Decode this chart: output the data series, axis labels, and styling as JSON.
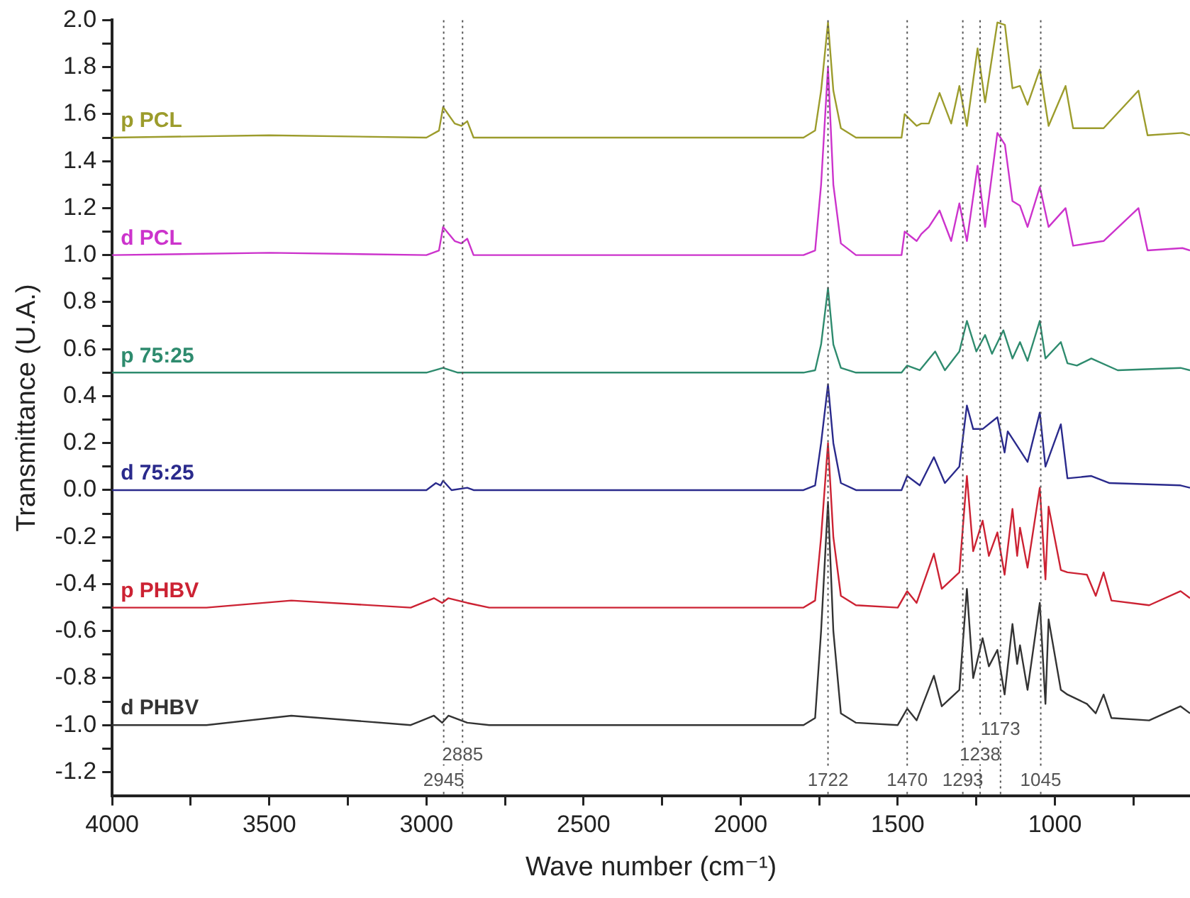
{
  "chart_data": {
    "type": "line",
    "xlabel": "Wave number (cm⁻¹)",
    "ylabel": "Transmittance (U.A.)",
    "xlim": [
      4000,
      570
    ],
    "xticks": [
      4000,
      {
        "value": 3750,
        "label": null
      },
      3500,
      {
        "value": 3250,
        "label": null
      },
      3000,
      {
        "value": 2750,
        "label": null
      },
      2500,
      {
        "value": 2250,
        "label": null
      },
      2000,
      {
        "value": 1750,
        "label": null
      },
      1500,
      {
        "value": 1250,
        "label": null
      },
      1000,
      {
        "value": 750,
        "label": null
      }
    ],
    "ylim": [
      -1.3,
      2.0
    ],
    "yticks": [
      -1.2,
      {
        "value": -1.1,
        "label": null
      },
      {
        "value": -1.0,
        "label": "-1.0"
      },
      {
        "value": -0.9,
        "label": null
      },
      -0.8,
      {
        "value": -0.7,
        "label": null
      },
      -0.6,
      {
        "value": -0.5,
        "label": null
      },
      -0.4,
      {
        "value": -0.3,
        "label": null
      },
      -0.2,
      {
        "value": -0.1,
        "label": null
      },
      {
        "value": 0,
        "label": "0.0"
      },
      {
        "value": 0.1,
        "label": null
      },
      0.2,
      {
        "value": 0.3,
        "label": null
      },
      0.4,
      {
        "value": 0.5,
        "label": null
      },
      0.6,
      {
        "value": 0.7,
        "label": null
      },
      0.8,
      {
        "value": 0.9,
        "label": null
      },
      {
        "value": 1.0,
        "label": "1.0"
      },
      {
        "value": 1.1,
        "label": null
      },
      1.2,
      {
        "value": 1.3,
        "label": null
      },
      1.4,
      {
        "value": 1.5,
        "label": null
      },
      1.6,
      {
        "value": 1.7,
        "label": null
      },
      1.8,
      {
        "value": 1.9,
        "label": null
      },
      {
        "value": 2.0,
        "label": "2.0"
      }
    ],
    "grid": false,
    "legend": false,
    "marker": "none",
    "line_style": "solid",
    "series": [
      {
        "name": "p PCL",
        "color": "#9c9c2c",
        "x": [
          4000,
          3500,
          3000,
          2960,
          2947,
          2910,
          2889,
          2870,
          2850,
          1800,
          1763,
          1744,
          1722,
          1705,
          1681,
          1633,
          1488,
          1478,
          1440,
          1425,
          1401,
          1367,
          1330,
          1304,
          1280,
          1246,
          1222,
          1183,
          1159,
          1135,
          1111,
          1087,
          1048,
          1020,
          966,
          942,
          845,
          734,
          705,
          594,
          570
        ],
        "values": [
          1.5,
          1.51,
          1.5,
          1.53,
          1.63,
          1.56,
          1.55,
          1.57,
          1.5,
          1.5,
          1.53,
          1.7,
          1.99,
          1.7,
          1.54,
          1.5,
          1.5,
          1.6,
          1.55,
          1.56,
          1.56,
          1.69,
          1.56,
          1.72,
          1.55,
          1.88,
          1.65,
          1.99,
          1.98,
          1.71,
          1.72,
          1.64,
          1.79,
          1.55,
          1.72,
          1.54,
          1.54,
          1.7,
          1.51,
          1.52,
          1.51
        ]
      },
      {
        "name": "d PCL",
        "color": "#cc33cc",
        "x": [
          4000,
          3500,
          3000,
          2960,
          2947,
          2910,
          2889,
          2870,
          2850,
          1800,
          1763,
          1744,
          1722,
          1705,
          1681,
          1633,
          1488,
          1478,
          1440,
          1425,
          1401,
          1367,
          1330,
          1304,
          1280,
          1246,
          1222,
          1183,
          1159,
          1135,
          1111,
          1087,
          1048,
          1020,
          966,
          942,
          845,
          734,
          705,
          594,
          570
        ],
        "values": [
          1.0,
          1.01,
          1.0,
          1.02,
          1.12,
          1.06,
          1.05,
          1.07,
          1.0,
          1.0,
          1.02,
          1.3,
          1.8,
          1.3,
          1.05,
          1.0,
          1.0,
          1.1,
          1.06,
          1.09,
          1.12,
          1.19,
          1.06,
          1.22,
          1.06,
          1.38,
          1.12,
          1.52,
          1.47,
          1.23,
          1.21,
          1.12,
          1.29,
          1.12,
          1.2,
          1.04,
          1.06,
          1.2,
          1.02,
          1.03,
          1.02
        ]
      },
      {
        "name": "p 75:25",
        "color": "#2e8b6e",
        "x": [
          4000,
          3000,
          2947,
          2900,
          1800,
          1763,
          1744,
          1722,
          1705,
          1681,
          1633,
          1488,
          1470,
          1430,
          1381,
          1350,
          1304,
          1280,
          1250,
          1222,
          1200,
          1164,
          1135,
          1111,
          1087,
          1048,
          1030,
          981,
          960,
          930,
          884,
          800,
          600,
          570
        ],
        "values": [
          0.5,
          0.5,
          0.52,
          0.5,
          0.5,
          0.51,
          0.62,
          0.86,
          0.62,
          0.52,
          0.5,
          0.5,
          0.53,
          0.51,
          0.59,
          0.51,
          0.59,
          0.72,
          0.59,
          0.66,
          0.58,
          0.68,
          0.56,
          0.63,
          0.55,
          0.72,
          0.56,
          0.63,
          0.54,
          0.53,
          0.56,
          0.51,
          0.52,
          0.51
        ]
      },
      {
        "name": "d 75:25",
        "color": "#2a2a8c",
        "x": [
          4000,
          3000,
          2970,
          2955,
          2947,
          2920,
          2870,
          2850,
          1800,
          1763,
          1744,
          1722,
          1705,
          1681,
          1633,
          1488,
          1470,
          1430,
          1385,
          1350,
          1304,
          1280,
          1260,
          1230,
          1183,
          1160,
          1150,
          1087,
          1048,
          1030,
          981,
          960,
          884,
          826,
          600,
          570
        ],
        "values": [
          0.0,
          0.0,
          0.03,
          0.02,
          0.04,
          0.0,
          0.01,
          0.0,
          0.0,
          0.02,
          0.2,
          0.45,
          0.2,
          0.03,
          0.0,
          0.0,
          0.06,
          0.02,
          0.14,
          0.03,
          0.1,
          0.36,
          0.26,
          0.26,
          0.31,
          0.16,
          0.25,
          0.12,
          0.33,
          0.1,
          0.28,
          0.05,
          0.06,
          0.03,
          0.02,
          0.01
        ]
      },
      {
        "name": "p PHBV",
        "color": "#cc2233",
        "x": [
          4000,
          3700,
          3430,
          3050,
          2976,
          2950,
          2930,
          2870,
          2800,
          1800,
          1763,
          1744,
          1722,
          1705,
          1681,
          1633,
          1500,
          1470,
          1440,
          1385,
          1360,
          1304,
          1280,
          1260,
          1230,
          1210,
          1183,
          1160,
          1135,
          1120,
          1111,
          1087,
          1048,
          1030,
          1020,
          981,
          960,
          898,
          870,
          845,
          820,
          700,
          600,
          570
        ],
        "values": [
          -0.5,
          -0.5,
          -0.47,
          -0.5,
          -0.46,
          -0.48,
          -0.46,
          -0.48,
          -0.5,
          -0.5,
          -0.47,
          -0.2,
          0.2,
          -0.2,
          -0.45,
          -0.49,
          -0.5,
          -0.43,
          -0.48,
          -0.27,
          -0.42,
          -0.35,
          0.06,
          -0.26,
          -0.13,
          -0.28,
          -0.18,
          -0.36,
          -0.08,
          -0.28,
          -0.16,
          -0.33,
          0.01,
          -0.38,
          -0.07,
          -0.34,
          -0.35,
          -0.36,
          -0.45,
          -0.35,
          -0.47,
          -0.49,
          -0.43,
          -0.46
        ]
      },
      {
        "name": "d PHBV",
        "color": "#333333",
        "x": [
          4000,
          3700,
          3430,
          3050,
          2976,
          2950,
          2930,
          2870,
          2800,
          1800,
          1763,
          1744,
          1722,
          1705,
          1681,
          1633,
          1500,
          1470,
          1440,
          1385,
          1360,
          1304,
          1280,
          1260,
          1230,
          1210,
          1183,
          1160,
          1135,
          1120,
          1111,
          1087,
          1048,
          1030,
          1020,
          981,
          960,
          898,
          870,
          845,
          820,
          700,
          600,
          570
        ],
        "values": [
          -1.0,
          -1.0,
          -0.96,
          -1.0,
          -0.96,
          -0.99,
          -0.96,
          -0.99,
          -1.0,
          -1.0,
          -0.97,
          -0.6,
          -0.05,
          -0.6,
          -0.95,
          -0.99,
          -1.0,
          -0.93,
          -0.98,
          -0.79,
          -0.92,
          -0.85,
          -0.42,
          -0.8,
          -0.63,
          -0.75,
          -0.68,
          -0.87,
          -0.57,
          -0.74,
          -0.66,
          -0.85,
          -0.48,
          -0.91,
          -0.55,
          -0.85,
          -0.87,
          -0.91,
          -0.95,
          -0.87,
          -0.97,
          -0.98,
          -0.92,
          -0.95
        ]
      }
    ],
    "ref_lines": [
      {
        "axis": "x",
        "value": 2945,
        "label": "2945",
        "line_style": "dotted",
        "color": "#555555"
      },
      {
        "axis": "x",
        "value": 2885,
        "label": "2885",
        "line_style": "dotted",
        "color": "#555555"
      },
      {
        "axis": "x",
        "value": 1722,
        "label": "1722",
        "line_style": "dotted",
        "color": "#555555"
      },
      {
        "axis": "x",
        "value": 1470,
        "label": "1470",
        "line_style": "dotted",
        "color": "#555555"
      },
      {
        "axis": "x",
        "value": 1293,
        "label": "1293",
        "line_style": "dotted",
        "color": "#555555"
      },
      {
        "axis": "x",
        "value": 1238,
        "label": "1238",
        "line_style": "dotted",
        "color": "#555555"
      },
      {
        "axis": "x",
        "value": 1173,
        "label": "1173",
        "line_style": "dotted",
        "color": "#555555"
      },
      {
        "axis": "x",
        "value": 1045,
        "label": "1045",
        "line_style": "dotted",
        "color": "#555555"
      }
    ]
  }
}
